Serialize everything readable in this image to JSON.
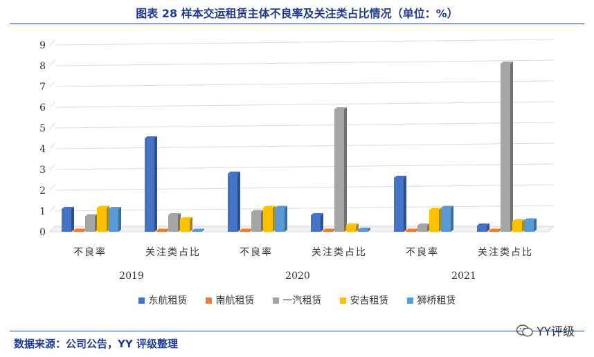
{
  "title": "图表 28 样本交运租赁主体不良率及关注类占比情况（单位：%）",
  "source": "数据来源：公司公告，YY 评级整理",
  "watermark": "YY评级",
  "chart_data": {
    "type": "bar",
    "title": "图表 28 样本交运租赁主体不良率及关注类占比情况（单位：%）",
    "ylim": [
      0,
      9
    ],
    "yticks": [
      "0",
      "1",
      "2",
      "3",
      "4",
      "5",
      "6",
      "7",
      "8",
      "9"
    ],
    "grid": true,
    "legend_placement": "bottom",
    "categories": [
      {
        "year": "2019",
        "label": "不良率"
      },
      {
        "year": "2019",
        "label": "关注类占比"
      },
      {
        "year": "2020",
        "label": "不良率"
      },
      {
        "year": "2020",
        "label": "关注类占比"
      },
      {
        "year": "2021",
        "label": "不良率"
      },
      {
        "year": "2021",
        "label": "关注类占比"
      }
    ],
    "years": [
      "2019",
      "2020",
      "2021"
    ],
    "series": [
      {
        "name": "东航租赁",
        "color": "#4472c4",
        "values": [
          1.1,
          4.5,
          2.8,
          0.8,
          2.6,
          0.3
        ]
      },
      {
        "name": "南航租赁",
        "color": "#ed7d31",
        "values": [
          0.05,
          0.05,
          0.05,
          0.05,
          0.05,
          0.05
        ]
      },
      {
        "name": "一汽租赁",
        "color": "#a5a5a5",
        "values": [
          0.75,
          0.8,
          0.95,
          5.9,
          0.3,
          8.1
        ]
      },
      {
        "name": "安吉租赁",
        "color": "#ffc000",
        "values": [
          1.15,
          0.6,
          1.15,
          0.3,
          1.05,
          0.5
        ]
      },
      {
        "name": "狮桥租赁",
        "color": "#5b9bd5",
        "values": [
          1.1,
          0.05,
          1.15,
          0.1,
          1.15,
          0.55
        ]
      }
    ]
  }
}
